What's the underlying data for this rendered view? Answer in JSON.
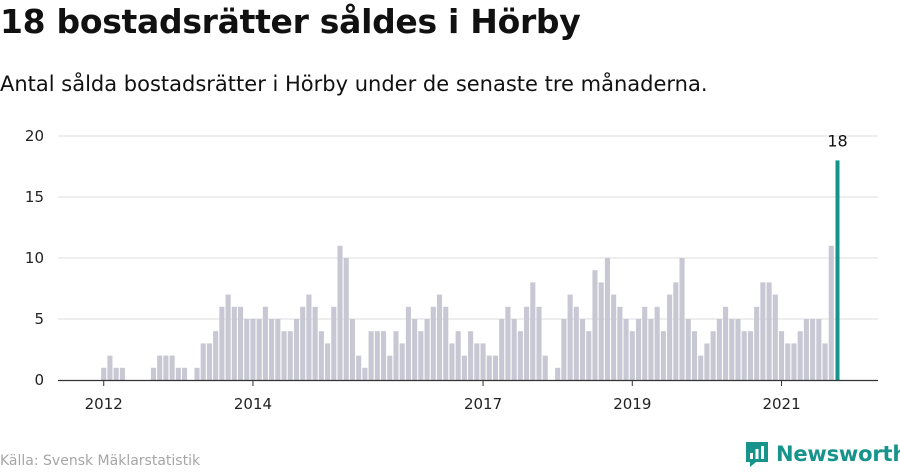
{
  "title": "18 bostadsrätter såldes i Hörby",
  "subtitle": "Antal sålda bostadsrätter i Hörby under de senaste tre månaderna.",
  "source": "Källa: Svensk Mäklarstatistik",
  "brand": "Newsworthy",
  "colors": {
    "bar": "#c8c7d4",
    "highlight": "#16938a",
    "grid": "#dddddd",
    "axis": "#333333"
  },
  "chart_data": {
    "type": "bar",
    "xlabel": "",
    "ylabel": "",
    "ylim": [
      0,
      20
    ],
    "yticks": [
      0,
      5,
      10,
      15,
      20
    ],
    "grid": true,
    "x_ticks": [
      {
        "label": "2012",
        "index": 1
      },
      {
        "label": "2014",
        "index": 25
      },
      {
        "label": "2017",
        "index": 62
      },
      {
        "label": "2019",
        "index": 86
      },
      {
        "label": "2021",
        "index": 110
      }
    ],
    "values": [
      0,
      1,
      2,
      1,
      1,
      0,
      0,
      0,
      0,
      1,
      2,
      2,
      2,
      1,
      1,
      0,
      1,
      3,
      3,
      4,
      6,
      7,
      6,
      6,
      5,
      5,
      5,
      6,
      5,
      5,
      4,
      4,
      5,
      6,
      7,
      6,
      4,
      3,
      6,
      11,
      10,
      5,
      2,
      1,
      4,
      4,
      4,
      2,
      4,
      3,
      6,
      5,
      4,
      5,
      6,
      7,
      6,
      3,
      4,
      2,
      4,
      3,
      3,
      2,
      2,
      5,
      6,
      5,
      4,
      6,
      8,
      6,
      2,
      0,
      1,
      5,
      7,
      6,
      5,
      4,
      9,
      8,
      10,
      7,
      6,
      5,
      4,
      5,
      6,
      5,
      6,
      4,
      7,
      8,
      10,
      5,
      4,
      2,
      3,
      4,
      5,
      6,
      5,
      5,
      4,
      4,
      6,
      8,
      8,
      7,
      4,
      3,
      3,
      4,
      5,
      5,
      5,
      3,
      11,
      18
    ],
    "highlight_label": "18"
  }
}
